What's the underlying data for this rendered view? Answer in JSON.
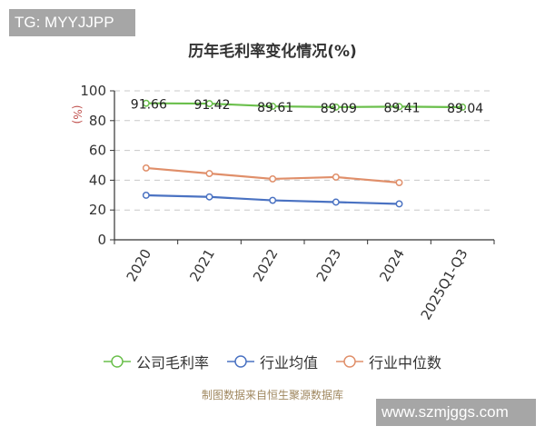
{
  "watermarks": {
    "top_left": "TG: MYYJJPP",
    "bottom_right": "www.szmjggs.com"
  },
  "title": "历年毛利率变化情况(%)",
  "y_axis_unit": "(%)",
  "legend": [
    {
      "label": "公司毛利率",
      "color": "#6abf4b"
    },
    {
      "label": "行业均值",
      "color": "#4a72c2"
    },
    {
      "label": "行业中位数",
      "color": "#e08f6a"
    }
  ],
  "source": "制图数据来自恒生聚源数据库",
  "chart_data": {
    "type": "line",
    "title": "历年毛利率变化情况(%)",
    "xlabel": "",
    "ylabel": "(%)",
    "ylim": [
      0,
      100
    ],
    "yticks": [
      0,
      20,
      40,
      60,
      80,
      100
    ],
    "grid": true,
    "legend_position": "bottom",
    "categories": [
      "2020",
      "2021",
      "2022",
      "2023",
      "2024",
      "2025Q1-Q3"
    ],
    "series": [
      {
        "name": "公司毛利率",
        "color": "#6abf4b",
        "values": [
          91.66,
          91.42,
          89.61,
          89.09,
          89.41,
          89.04
        ],
        "labels": [
          "91.66",
          "91.42",
          "89.61",
          "89.09",
          "89.41",
          "89.04"
        ]
      },
      {
        "name": "行业均值",
        "color": "#4a72c2",
        "values": [
          29.9,
          28.8,
          26.5,
          25.3,
          24.1,
          null
        ]
      },
      {
        "name": "行业中位数",
        "color": "#e08f6a",
        "values": [
          48.2,
          44.5,
          40.9,
          42.1,
          38.4,
          null
        ]
      }
    ]
  }
}
